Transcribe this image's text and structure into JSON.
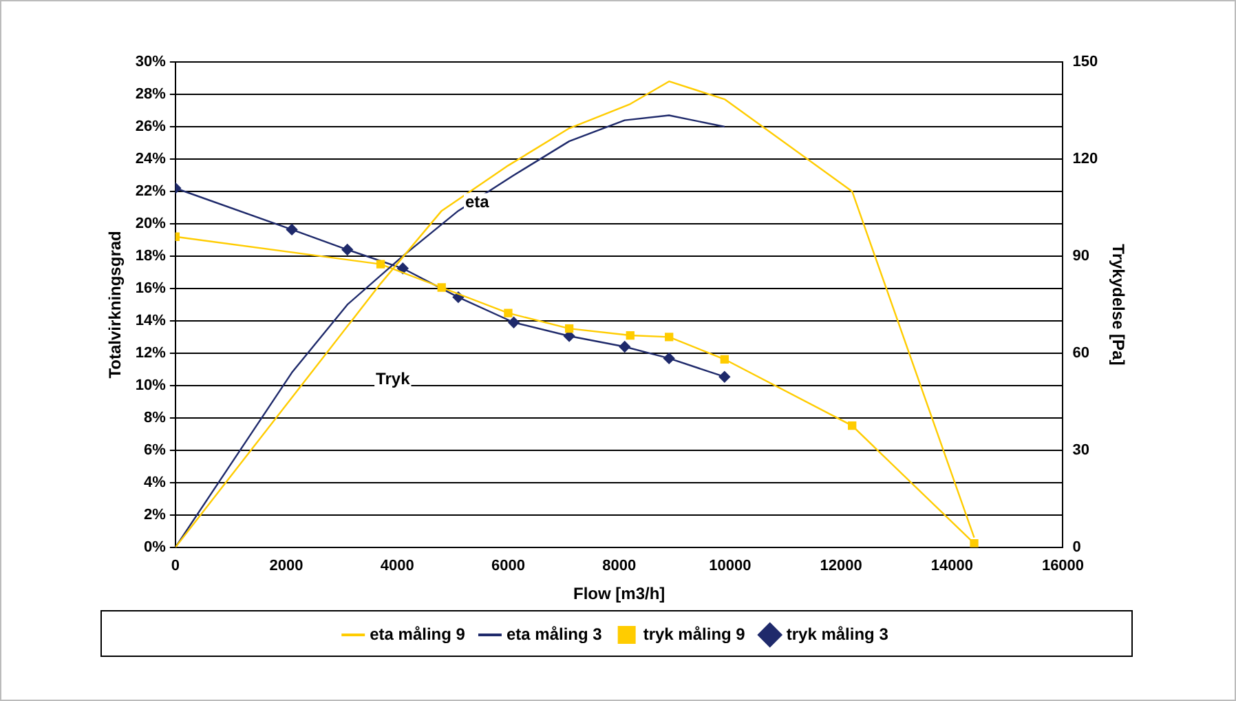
{
  "chart_data": {
    "type": "line",
    "xlabel": "Flow [m3/h]",
    "ylabel": "Totalvirkningsgrad",
    "y2label": "Trykydelse [Pa]",
    "xlim": [
      0,
      16000
    ],
    "xticks": [
      0,
      2000,
      4000,
      6000,
      8000,
      10000,
      12000,
      14000,
      16000
    ],
    "ylim": [
      0,
      30
    ],
    "yticks": [
      {
        "value": 0,
        "label": "0%"
      },
      {
        "value": 2,
        "label": "2%"
      },
      {
        "value": 4,
        "label": "4%"
      },
      {
        "value": 6,
        "label": "6%"
      },
      {
        "value": 8,
        "label": "8%"
      },
      {
        "value": 10,
        "label": "10%"
      },
      {
        "value": 12,
        "label": "12%"
      },
      {
        "value": 14,
        "label": "14%"
      },
      {
        "value": 16,
        "label": "16%"
      },
      {
        "value": 18,
        "label": "18%"
      },
      {
        "value": 20,
        "label": "20%"
      },
      {
        "value": 22,
        "label": "22%"
      },
      {
        "value": 24,
        "label": "24%"
      },
      {
        "value": 26,
        "label": "26%"
      },
      {
        "value": 28,
        "label": "28%"
      },
      {
        "value": 30,
        "label": "30%"
      }
    ],
    "y2lim": [
      0,
      150
    ],
    "y2ticks": [
      0,
      30,
      60,
      90,
      120,
      150
    ],
    "grid": "y",
    "legend": "bottom",
    "annotations": [
      "eta",
      "Tryk"
    ],
    "series": [
      {
        "name": "eta måling 9",
        "color": "#ffcc00",
        "marker": "none",
        "x": [
          0,
          3700,
          4800,
          6000,
          7100,
          8200,
          8900,
          9900,
          12200,
          14400
        ],
        "values": [
          0,
          16.3,
          20.8,
          23.6,
          25.9,
          27.4,
          28.8,
          27.7,
          22,
          0.6
        ]
      },
      {
        "name": "eta måling 3",
        "color": "#1f2a6b",
        "marker": "none",
        "x": [
          0,
          2100,
          3100,
          4100,
          5100,
          6100,
          7100,
          8100,
          8900,
          9900
        ],
        "values": [
          0,
          10.8,
          15,
          18,
          20.8,
          23,
          25.1,
          26.4,
          26.7,
          26
        ]
      },
      {
        "name": "tryk måling 9",
        "color": "#ffcc00",
        "marker": "square",
        "axis": "y2",
        "x": [
          0,
          3700,
          4800,
          6000,
          7100,
          8200,
          8900,
          9900,
          12200,
          14400
        ],
        "values": [
          96,
          87.5,
          80.3,
          72.4,
          67.6,
          65.5,
          65,
          58.1,
          37.6,
          1.2
        ]
      },
      {
        "name": "tryk måling 3",
        "color": "#1f2a6b",
        "marker": "diamond",
        "axis": "y2",
        "x": [
          0,
          2100,
          3100,
          4100,
          5100,
          6100,
          7100,
          8100,
          8900,
          9900
        ],
        "values": [
          111,
          98.2,
          92,
          86.2,
          77.3,
          69.5,
          65.3,
          62,
          58.4,
          52.7
        ]
      }
    ]
  }
}
